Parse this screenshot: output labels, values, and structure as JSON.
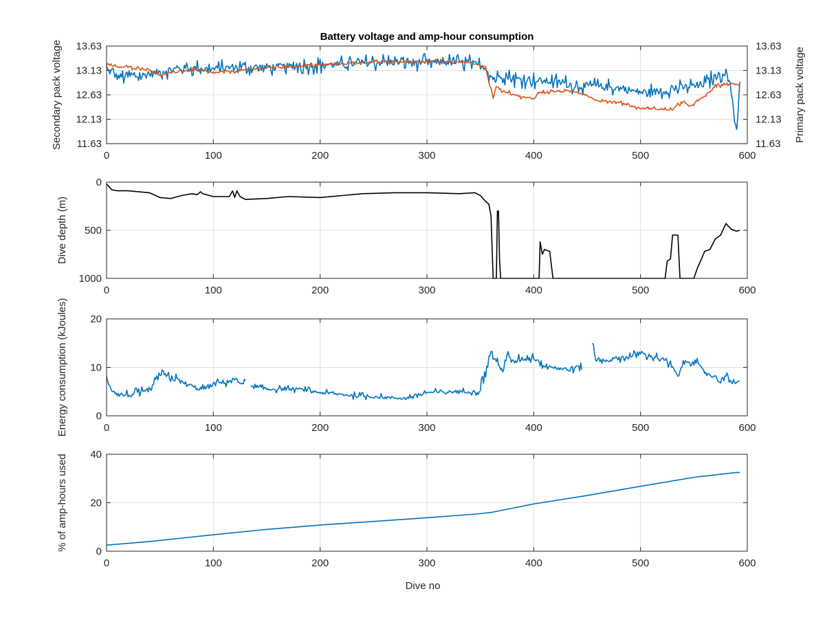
{
  "chart_data": [
    {
      "type": "line",
      "title": "Battery voltage and amp-hour consumption",
      "xlabel": "",
      "ylabel": "Secondary pack voltage",
      "ylabel_right": "Primary pack voltage",
      "xlim": [
        0,
        600
      ],
      "ylim": [
        11.63,
        13.63
      ],
      "x_ticks": [
        "0",
        "100",
        "200",
        "300",
        "400",
        "500",
        "600"
      ],
      "y_ticks": [
        "11.63",
        "12.13",
        "12.63",
        "13.13",
        "13.63"
      ],
      "y_ticks_right": [
        "11.63",
        "12.13",
        "12.63",
        "13.13",
        "13.63"
      ],
      "grid": true,
      "colors": {
        "left": "#0072BD",
        "right": "#D95319"
      },
      "series": [
        {
          "axis": "left",
          "color": "#0072BD",
          "x": [
            0,
            10,
            20,
            30,
            40,
            50,
            60,
            80,
            100,
            120,
            140,
            160,
            180,
            200,
            220,
            240,
            260,
            280,
            300,
            320,
            340,
            355,
            360,
            365,
            370,
            380,
            390,
            400,
            420,
            440,
            460,
            480,
            500,
            520,
            540,
            560,
            570,
            580,
            585,
            588,
            590,
            593
          ],
          "values": [
            13.15,
            13.0,
            13.0,
            13.02,
            13.05,
            13.1,
            13.15,
            13.18,
            13.15,
            13.2,
            13.2,
            13.2,
            13.22,
            13.24,
            13.25,
            13.28,
            13.3,
            13.3,
            13.3,
            13.3,
            13.28,
            13.2,
            13.0,
            12.95,
            13.05,
            12.95,
            12.95,
            12.92,
            12.9,
            12.82,
            12.8,
            12.77,
            12.68,
            12.7,
            12.78,
            12.85,
            13.0,
            13.1,
            12.7,
            12.2,
            11.85,
            12.9
          ],
          "noise": 0.12
        },
        {
          "axis": "right",
          "color": "#D95319",
          "x": [
            0,
            10,
            20,
            40,
            50,
            60,
            80,
            100,
            150,
            200,
            250,
            300,
            340,
            355,
            360,
            362,
            365,
            370,
            380,
            390,
            400,
            405,
            420,
            440,
            450,
            460,
            470,
            480,
            500,
            510,
            520,
            530,
            540,
            545,
            560,
            570,
            580,
            590,
            593
          ],
          "values": [
            13.25,
            13.2,
            13.2,
            13.15,
            13.03,
            13.08,
            13.15,
            13.08,
            13.18,
            13.25,
            13.3,
            13.32,
            13.3,
            13.2,
            12.72,
            12.55,
            12.82,
            12.72,
            12.65,
            12.58,
            12.55,
            12.68,
            12.7,
            12.7,
            12.62,
            12.5,
            12.5,
            12.48,
            12.35,
            12.35,
            12.33,
            12.33,
            12.5,
            12.38,
            12.6,
            12.8,
            12.85,
            12.85,
            12.8
          ],
          "noise": 0.03
        }
      ]
    },
    {
      "type": "line",
      "title": "",
      "xlabel": "",
      "ylabel": "Dive depth (m)",
      "xlim": [
        0,
        600
      ],
      "ylim": [
        1000,
        0
      ],
      "y_reversed": true,
      "x_ticks": [
        "0",
        "100",
        "200",
        "300",
        "400",
        "500",
        "600"
      ],
      "y_ticks": [
        "0",
        "500",
        "1000"
      ],
      "grid": true,
      "series": [
        {
          "color": "#000000",
          "x": [
            0,
            5,
            10,
            20,
            40,
            50,
            60,
            70,
            80,
            85,
            88,
            90,
            100,
            115,
            118,
            120,
            122,
            125,
            130,
            150,
            170,
            200,
            240,
            270,
            300,
            330,
            345,
            350,
            355,
            358,
            360,
            362,
            363,
            365,
            366,
            367,
            368,
            369,
            370,
            380,
            400,
            405,
            406,
            408,
            410,
            415,
            418,
            420,
            440,
            480,
            520,
            523,
            525,
            528,
            530,
            535,
            537,
            538,
            540,
            550,
            553,
            557,
            560,
            565,
            570,
            575,
            580,
            585,
            590,
            593
          ],
          "values": [
            20,
            80,
            90,
            90,
            110,
            160,
            170,
            140,
            120,
            130,
            100,
            120,
            150,
            150,
            90,
            160,
            90,
            150,
            180,
            170,
            150,
            160,
            120,
            110,
            110,
            120,
            110,
            140,
            200,
            230,
            350,
            1000,
            1000,
            1000,
            300,
            300,
            800,
            1000,
            1000,
            1000,
            1000,
            1000,
            620,
            750,
            700,
            720,
            1000,
            1000,
            1000,
            1000,
            1000,
            1000,
            820,
            800,
            550,
            550,
            1000,
            1000,
            1000,
            1000,
            900,
            800,
            720,
            700,
            590,
            550,
            430,
            490,
            510,
            500
          ]
        }
      ]
    },
    {
      "type": "line",
      "title": "",
      "xlabel": "",
      "ylabel": "Energy consumption (kJoules)",
      "xlim": [
        0,
        600
      ],
      "ylim": [
        0,
        20
      ],
      "x_ticks": [
        "0",
        "100",
        "200",
        "300",
        "400",
        "500",
        "600"
      ],
      "y_ticks": [
        "0",
        "10",
        "20"
      ],
      "grid": true,
      "series": [
        {
          "color": "#0072BD",
          "x": [
            0,
            5,
            10,
            20,
            40,
            50,
            60,
            70,
            80,
            90,
            100,
            110,
            120,
            125,
            130
          ],
          "values": [
            7.5,
            5.5,
            4.5,
            4.2,
            5.0,
            8.5,
            8.0,
            7.0,
            6.0,
            5.5,
            6.5,
            7.0,
            7.5,
            6.8,
            7.2
          ],
          "noise": 0.8
        },
        {
          "color": "#0072BD",
          "x": [
            135,
            150,
            180,
            200,
            230,
            260,
            280,
            300,
            330,
            350
          ],
          "values": [
            6.0,
            5.5,
            5.5,
            4.8,
            4.2,
            3.8,
            3.6,
            4.8,
            5.0,
            5.0
          ],
          "noise": 0.5
        },
        {
          "color": "#0072BD",
          "x": [
            350,
            355,
            360,
            365,
            370,
            375,
            380,
            390,
            400,
            410,
            420,
            430,
            440,
            445
          ],
          "values": [
            6.0,
            9.0,
            13.5,
            11.0,
            9.5,
            12.5,
            11.0,
            11.8,
            12.0,
            10.5,
            10.0,
            9.5,
            10.0,
            9.5
          ],
          "noise": 0.8
        },
        {
          "color": "#0072BD",
          "x": [
            455,
            458,
            470,
            480,
            490,
            500,
            510,
            520,
            530,
            535,
            540,
            550,
            560,
            570,
            575,
            580,
            585,
            590,
            593
          ],
          "values": [
            16.0,
            11.5,
            11.5,
            12.0,
            12.2,
            12.8,
            12.3,
            11.8,
            10.0,
            8.0,
            11.0,
            11.5,
            9.0,
            8.0,
            7.0,
            9.0,
            6.5,
            7.2,
            7.2
          ],
          "noise": 0.7
        }
      ]
    },
    {
      "type": "line",
      "title": "",
      "xlabel": "Dive no",
      "ylabel": "% of amp-hours used",
      "xlim": [
        0,
        600
      ],
      "ylim": [
        0,
        40
      ],
      "x_ticks": [
        "0",
        "100",
        "200",
        "300",
        "400",
        "500",
        "600"
      ],
      "y_ticks": [
        "0",
        "20",
        "40"
      ],
      "grid": true,
      "series": [
        {
          "color": "#0072BD",
          "x": [
            0,
            40,
            100,
            150,
            200,
            250,
            300,
            350,
            360,
            400,
            450,
            500,
            550,
            590,
            593
          ],
          "values": [
            2.5,
            4.0,
            6.8,
            9.0,
            10.8,
            12.3,
            13.8,
            15.5,
            16.0,
            19.5,
            23.0,
            26.8,
            30.5,
            32.5,
            32.5
          ]
        }
      ]
    }
  ]
}
